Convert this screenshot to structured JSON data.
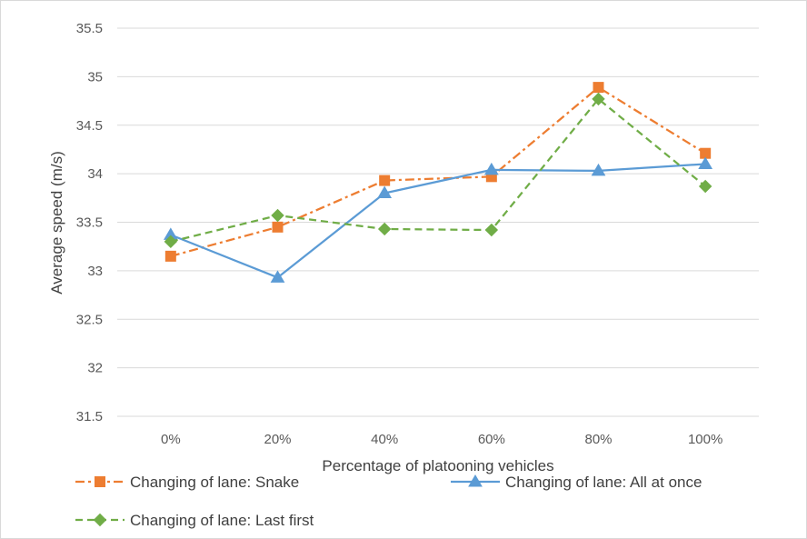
{
  "chart_data": {
    "type": "line",
    "title": "",
    "xlabel": "Percentage of platooning vehicles",
    "ylabel": "Average speed (m/s)",
    "categories": [
      "0%",
      "20%",
      "40%",
      "60%",
      "80%",
      "100%"
    ],
    "ylim": [
      31.5,
      35.5
    ],
    "yticks": [
      31.5,
      32,
      32.5,
      33,
      33.5,
      34,
      34.5,
      35,
      35.5
    ],
    "ytick_labels": [
      "31.5",
      "32",
      "32.5",
      "33",
      "33.5",
      "34",
      "34.5",
      "35",
      "35.5"
    ],
    "grid": true,
    "legend_position": "bottom",
    "series": [
      {
        "name": "Changing of lane: Snake",
        "values": [
          33.15,
          33.45,
          33.93,
          33.97,
          34.89,
          34.21
        ],
        "color": "#ed7d31",
        "line_style": "dash-dot",
        "marker": "square"
      },
      {
        "name": "Changing of lane: All at once",
        "values": [
          33.37,
          32.93,
          33.8,
          34.04,
          34.03,
          34.1
        ],
        "color": "#5b9bd5",
        "line_style": "solid",
        "marker": "triangle"
      },
      {
        "name": "Changing of lane: Last first",
        "values": [
          33.3,
          33.57,
          33.43,
          33.42,
          34.77,
          33.87
        ],
        "color": "#70ad47",
        "line_style": "dashed",
        "marker": "diamond"
      }
    ]
  }
}
